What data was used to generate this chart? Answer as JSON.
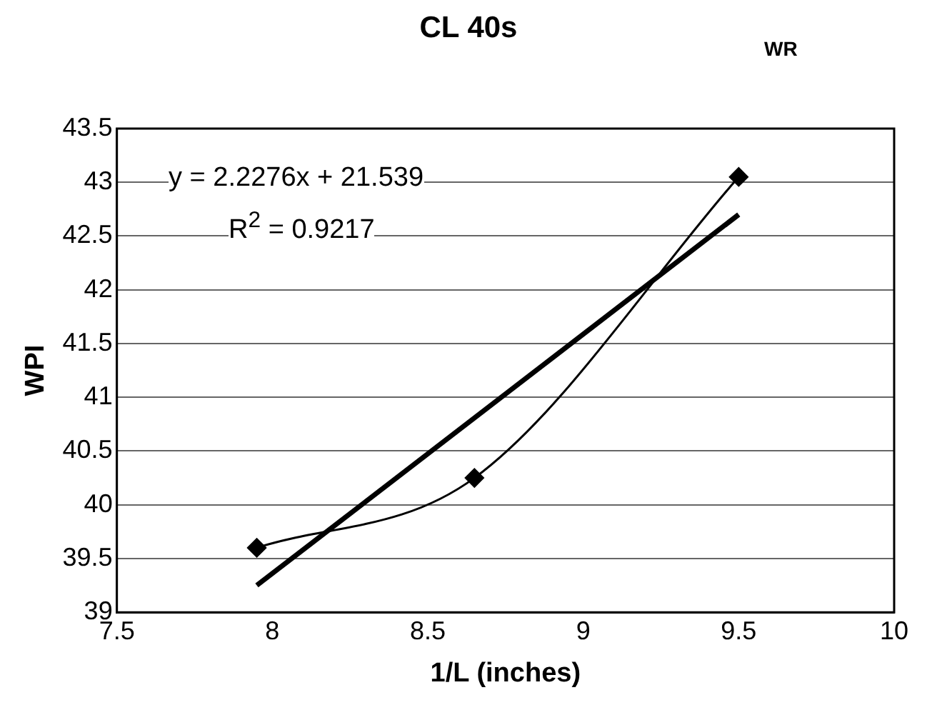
{
  "chart_data": {
    "type": "scatter",
    "title": "CL 40s",
    "subtitle": "WR",
    "xlabel": "1/L (inches)",
    "ylabel": "WPI",
    "x": [
      7.95,
      8.65,
      9.5
    ],
    "series": [
      {
        "type": "line",
        "color": "#000000",
        "values": [
          39.6,
          40.25,
          43.05
        ],
        "marker": "diamond"
      },
      {
        "type": "line",
        "color": "#000000",
        "x": [
          7.95,
          9.5
        ],
        "values": [
          39.25,
          42.7
        ],
        "marker": "none"
      }
    ],
    "xlim": [
      7.5,
      10
    ],
    "xticks": [
      7.5,
      8,
      8.5,
      9,
      9.5,
      10
    ],
    "ylim": [
      39,
      43.5
    ],
    "yticks": [
      39,
      39.5,
      40,
      40.5,
      41,
      41.5,
      42,
      42.5,
      43,
      43.5
    ],
    "grid": "y",
    "legend": false,
    "annotations": [
      "y = 2.2276x + 21.539",
      "R$^{2}$ = 0.9217"
    ]
  }
}
